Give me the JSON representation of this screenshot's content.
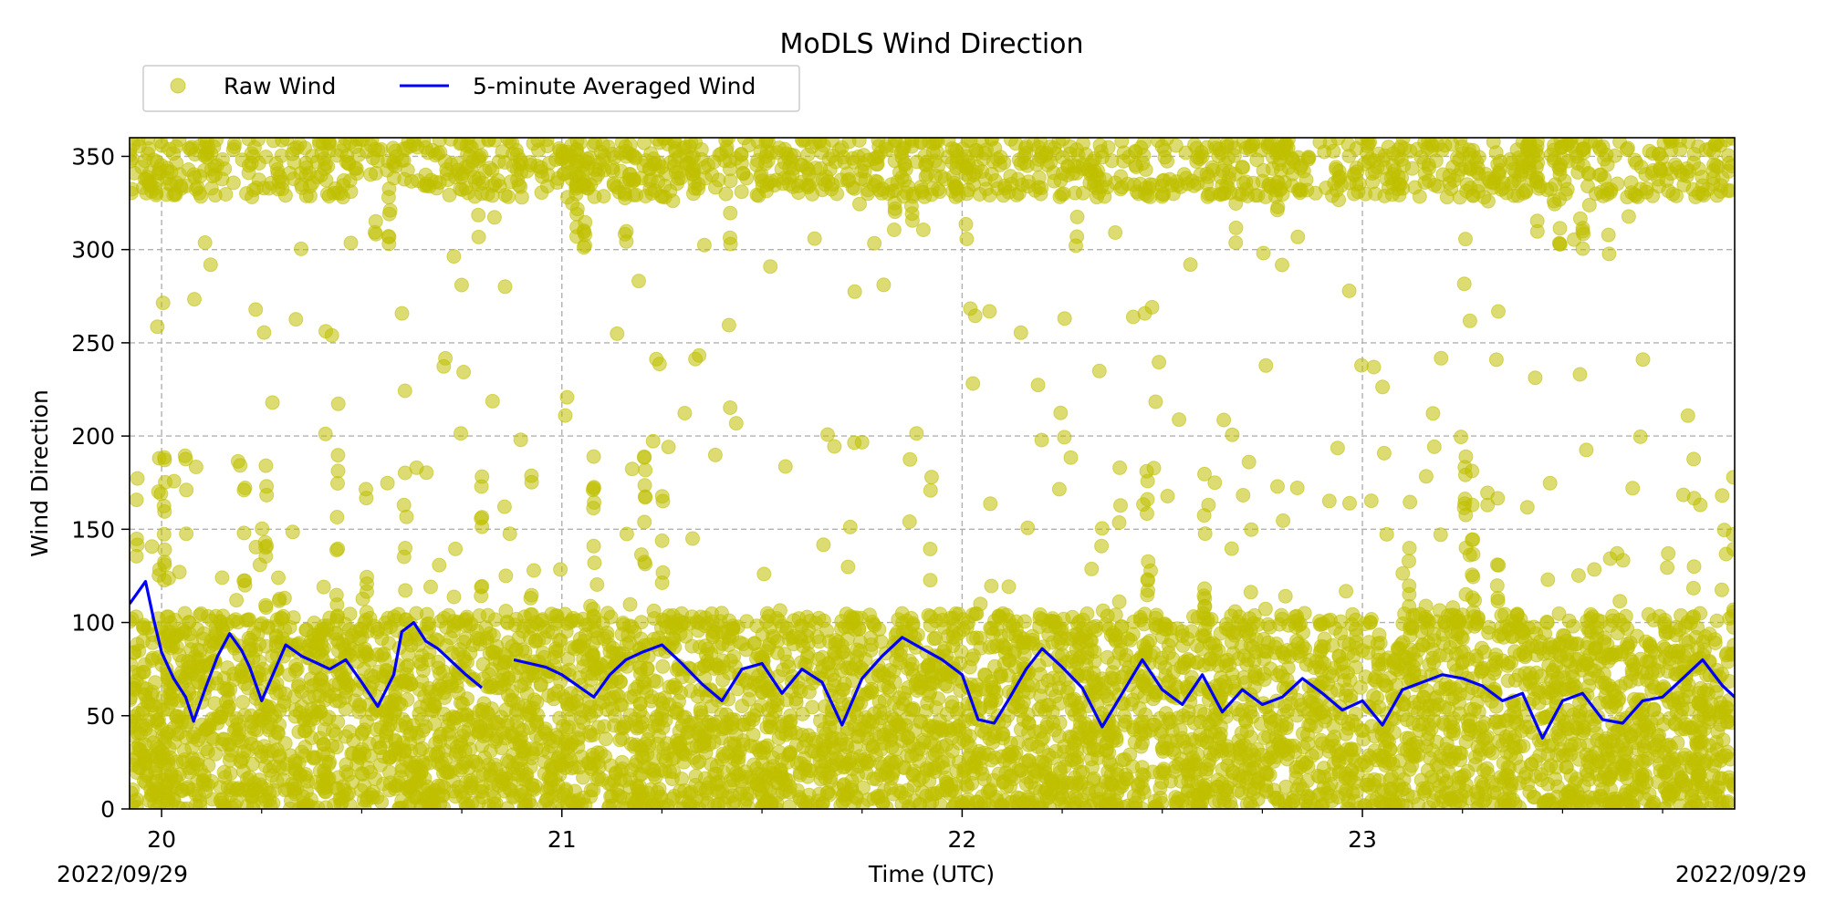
{
  "chart_data": {
    "type": "scatter",
    "title": "MoDLS Wind Direction",
    "xlabel": "Time (UTC)",
    "ylabel": "Wind Direction",
    "x_unit": "hour",
    "xlim": [
      19.92,
      23.93
    ],
    "ylim": [
      0,
      360
    ],
    "x_ticks": [
      {
        "value": 20,
        "label": "20"
      },
      {
        "value": 21,
        "label": "21"
      },
      {
        "value": 22,
        "label": "22"
      },
      {
        "value": 23,
        "label": "23"
      }
    ],
    "x_minor_ticks": [
      20.25,
      20.5,
      20.75,
      21.25,
      21.5,
      21.75,
      22.25,
      22.5,
      22.75,
      23.25,
      23.5,
      23.75
    ],
    "y_ticks": [
      0,
      50,
      100,
      150,
      200,
      250,
      300,
      350
    ],
    "date_left": "2022/09/29",
    "date_right": "2022/09/29",
    "grid": true,
    "legend_position": "top-left",
    "legend": [
      {
        "label": "Raw Wind",
        "marker": "circle",
        "color": "#bfbf00"
      },
      {
        "label": "5-minute Averaged Wind",
        "marker": "line",
        "color": "#0000ff"
      }
    ],
    "series": [
      {
        "name": "5-minute Averaged Wind",
        "color": "#0000ff",
        "x": [
          19.92,
          19.94,
          19.96,
          19.98,
          20.0,
          20.03,
          20.06,
          20.08,
          20.11,
          20.14,
          20.17,
          20.2,
          20.22,
          20.25,
          20.28,
          20.31,
          20.35,
          20.39,
          20.42,
          20.46,
          20.5,
          20.54,
          20.58,
          20.6,
          20.63,
          20.66,
          20.69,
          20.72,
          20.76,
          20.8,
          null,
          20.88,
          20.92,
          20.96,
          21.0,
          21.04,
          21.08,
          21.12,
          21.16,
          21.2,
          21.25,
          21.3,
          21.35,
          21.4,
          21.45,
          21.5,
          21.55,
          21.6,
          21.65,
          21.7,
          21.75,
          21.8,
          21.85,
          21.9,
          21.95,
          22.0,
          22.04,
          22.08,
          22.12,
          22.16,
          22.2,
          22.25,
          22.3,
          22.35,
          22.4,
          22.45,
          22.5,
          22.55,
          22.6,
          22.65,
          22.7,
          22.75,
          22.8,
          22.85,
          22.9,
          22.95,
          23.0,
          23.05,
          23.1,
          23.15,
          23.2,
          23.25,
          23.3,
          23.35,
          23.4,
          23.45,
          23.5,
          23.55,
          23.6,
          23.65,
          23.7,
          23.75,
          23.8,
          23.85,
          23.9,
          23.93
        ],
        "y": [
          110,
          116,
          122,
          102,
          84,
          70,
          60,
          47,
          65,
          82,
          94,
          85,
          76,
          58,
          73,
          88,
          82,
          78,
          75,
          80,
          68,
          55,
          72,
          95,
          100,
          90,
          86,
          80,
          72,
          65,
          null,
          80,
          78,
          76,
          72,
          66,
          60,
          72,
          80,
          84,
          88,
          78,
          67,
          58,
          75,
          78,
          62,
          75,
          68,
          45,
          70,
          82,
          92,
          86,
          80,
          72,
          48,
          46,
          60,
          75,
          86,
          76,
          65,
          44,
          62,
          80,
          64,
          56,
          72,
          52,
          64,
          56,
          60,
          70,
          62,
          53,
          58,
          45,
          64,
          68,
          72,
          70,
          66,
          58,
          62,
          38,
          58,
          62,
          48,
          46,
          58,
          60,
          70,
          80,
          66,
          60
        ]
      }
    ]
  }
}
